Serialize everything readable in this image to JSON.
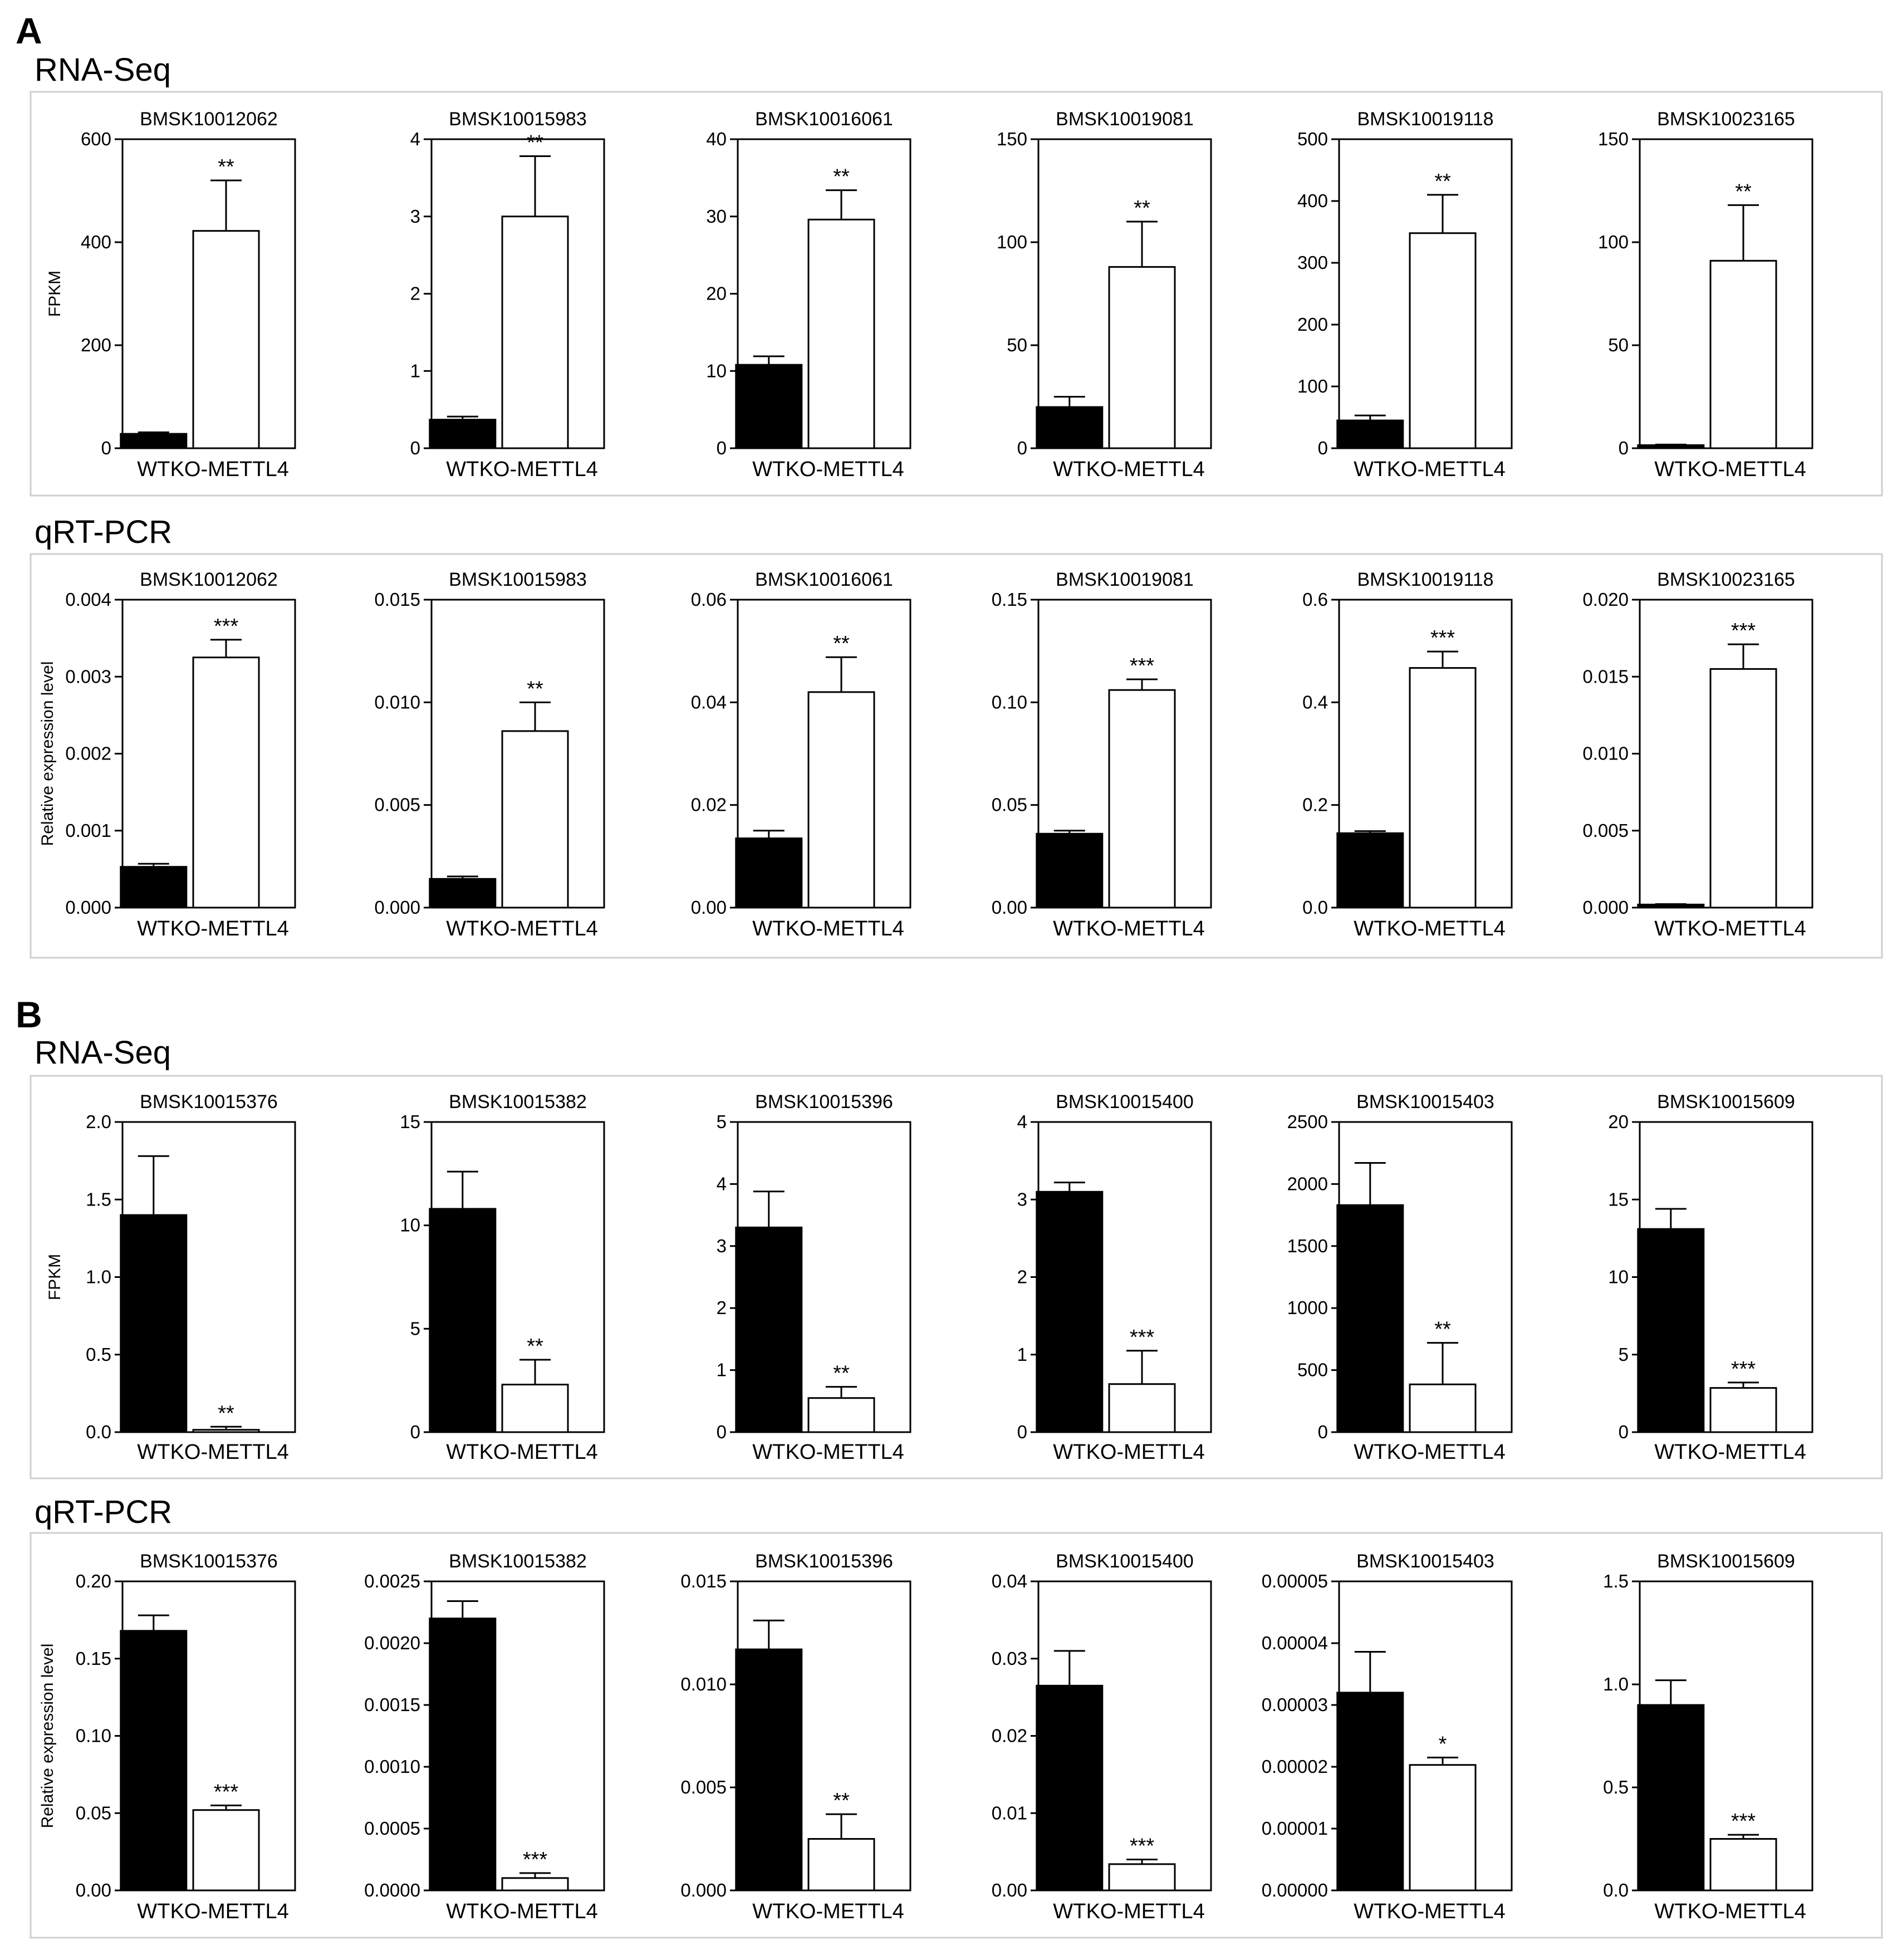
{
  "panels": [
    {
      "letter": "A",
      "rows": [
        {
          "title": "RNA-Seq",
          "ylabel": "FPKM",
          "charts": [
            {
              "title": "BMSK10012062",
              "ylim": [
                0,
                600
              ],
              "ticks": [
                "0",
                "200",
                "400",
                "600"
              ],
              "categories": [
                "WT",
                "KO-METTL4"
              ],
              "values": [
                28,
                422
              ],
              "errors": [
                3,
                98
              ],
              "sig": [
                "",
                "**"
              ]
            },
            {
              "title": "BMSK10015983",
              "ylim": [
                0,
                4
              ],
              "ticks": [
                "0",
                "1",
                "2",
                "3",
                "4"
              ],
              "categories": [
                "WT",
                "KO-METTL4"
              ],
              "values": [
                0.37,
                3.0
              ],
              "errors": [
                0.04,
                0.78
              ],
              "sig": [
                "",
                "**"
              ]
            },
            {
              "title": "BMSK10016061",
              "ylim": [
                0,
                40
              ],
              "ticks": [
                "0",
                "10",
                "20",
                "30",
                "40"
              ],
              "categories": [
                "WT",
                "KO-METTL4"
              ],
              "values": [
                10.8,
                29.6
              ],
              "errors": [
                1.1,
                3.8
              ],
              "sig": [
                "",
                "**"
              ]
            },
            {
              "title": "BMSK10019081",
              "ylim": [
                0,
                150
              ],
              "ticks": [
                "0",
                "50",
                "100",
                "150"
              ],
              "categories": [
                "WT",
                "KO-METTL4"
              ],
              "values": [
                20,
                88
              ],
              "errors": [
                5,
                22
              ],
              "sig": [
                "",
                "**"
              ]
            },
            {
              "title": "BMSK10019118",
              "ylim": [
                0,
                500
              ],
              "ticks": [
                "0",
                "100",
                "200",
                "300",
                "400",
                "500"
              ],
              "categories": [
                "WT",
                "KO-METTL4"
              ],
              "values": [
                45,
                348
              ],
              "errors": [
                8,
                62
              ],
              "sig": [
                "",
                "**"
              ]
            },
            {
              "title": "BMSK10023165",
              "ylim": [
                0,
                150
              ],
              "ticks": [
                "0",
                "50",
                "100",
                "150"
              ],
              "categories": [
                "WT",
                "KO-METTL4"
              ],
              "values": [
                1.5,
                91
              ],
              "errors": [
                0.3,
                27
              ],
              "sig": [
                "",
                "**"
              ]
            }
          ]
        },
        {
          "title": "qRT-PCR",
          "ylabel": "Relative expression level",
          "charts": [
            {
              "title": "BMSK10012062",
              "ylim": [
                0,
                0.004
              ],
              "ticks": [
                "0.000",
                "0.001",
                "0.002",
                "0.003",
                "0.004"
              ],
              "categories": [
                "WT",
                "KO-METTL4"
              ],
              "values": [
                0.00053,
                0.00325
              ],
              "errors": [
                4e-05,
                0.00023
              ],
              "sig": [
                "",
                "***"
              ]
            },
            {
              "title": "BMSK10015983",
              "ylim": [
                0,
                0.015
              ],
              "ticks": [
                "0.000",
                "0.005",
                "0.010",
                "0.015"
              ],
              "categories": [
                "WT",
                "KO-METTL4"
              ],
              "values": [
                0.0014,
                0.0086
              ],
              "errors": [
                0.00012,
                0.0014
              ],
              "sig": [
                "",
                "**"
              ]
            },
            {
              "title": "BMSK10016061",
              "ylim": [
                0,
                0.06
              ],
              "ticks": [
                "0.00",
                "0.02",
                "0.04",
                "0.06"
              ],
              "categories": [
                "WT",
                "KO-METTL4"
              ],
              "values": [
                0.0135,
                0.042
              ],
              "errors": [
                0.0015,
                0.0068
              ],
              "sig": [
                "",
                "**"
              ]
            },
            {
              "title": "BMSK10019081",
              "ylim": [
                0,
                0.15
              ],
              "ticks": [
                "0.00",
                "0.05",
                "0.10",
                "0.15"
              ],
              "categories": [
                "WT",
                "KO-METTL4"
              ],
              "values": [
                0.036,
                0.106
              ],
              "errors": [
                0.0015,
                0.0052
              ],
              "sig": [
                "",
                "***"
              ]
            },
            {
              "title": "BMSK10019118",
              "ylim": [
                0,
                0.6
              ],
              "ticks": [
                "0.0",
                "0.2",
                "0.4",
                "0.6"
              ],
              "categories": [
                "WT",
                "KO-METTL4"
              ],
              "values": [
                0.145,
                0.467
              ],
              "errors": [
                0.004,
                0.032
              ],
              "sig": [
                "",
                "***"
              ]
            },
            {
              "title": "BMSK10023165",
              "ylim": [
                0,
                0.02
              ],
              "ticks": [
                "0.000",
                "0.005",
                "0.010",
                "0.015",
                "0.020"
              ],
              "categories": [
                "WT",
                "KO-METTL4"
              ],
              "values": [
                0.0002,
                0.0155
              ],
              "errors": [
                3e-05,
                0.0016
              ],
              "sig": [
                "",
                "***"
              ]
            }
          ]
        }
      ]
    },
    {
      "letter": "B",
      "rows": [
        {
          "title": "RNA-Seq",
          "ylabel": "FPKM",
          "charts": [
            {
              "title": "BMSK10015376",
              "ylim": [
                0,
                2.0
              ],
              "ticks": [
                "0.0",
                "0.5",
                "1.0",
                "1.5",
                "2.0"
              ],
              "categories": [
                "WT",
                "KO-METTL4"
              ],
              "values": [
                1.4,
                0.015
              ],
              "errors": [
                0.38,
                0.02
              ],
              "sig": [
                "",
                "**"
              ]
            },
            {
              "title": "BMSK10015382",
              "ylim": [
                0,
                15
              ],
              "ticks": [
                "0",
                "5",
                "10",
                "15"
              ],
              "categories": [
                "WT",
                "KO-METTL4"
              ],
              "values": [
                10.8,
                2.3
              ],
              "errors": [
                1.8,
                1.2
              ],
              "sig": [
                "",
                "**"
              ]
            },
            {
              "title": "BMSK10015396",
              "ylim": [
                0,
                5
              ],
              "ticks": [
                "0",
                "1",
                "2",
                "3",
                "4",
                "5"
              ],
              "categories": [
                "WT",
                "KO-METTL4"
              ],
              "values": [
                3.3,
                0.55
              ],
              "errors": [
                0.58,
                0.18
              ],
              "sig": [
                "",
                "**"
              ]
            },
            {
              "title": "BMSK10015400",
              "ylim": [
                0,
                4
              ],
              "ticks": [
                "0",
                "1",
                "2",
                "3",
                "4"
              ],
              "categories": [
                "WT",
                "KO-METTL4"
              ],
              "values": [
                3.1,
                0.62
              ],
              "errors": [
                0.12,
                0.43
              ],
              "sig": [
                "",
                "***"
              ]
            },
            {
              "title": "BMSK10015403",
              "ylim": [
                0,
                2500
              ],
              "ticks": [
                "0",
                "500",
                "1000",
                "1500",
                "2000",
                "2500"
              ],
              "categories": [
                "WT",
                "KO-METTL4"
              ],
              "values": [
                1830,
                385
              ],
              "errors": [
                340,
                335
              ],
              "sig": [
                "",
                "**"
              ]
            },
            {
              "title": "BMSK10015609",
              "ylim": [
                0,
                20
              ],
              "ticks": [
                "0",
                "5",
                "10",
                "15",
                "20"
              ],
              "categories": [
                "WT",
                "KO-METTL4"
              ],
              "values": [
                13.1,
                2.85
              ],
              "errors": [
                1.3,
                0.35
              ],
              "sig": [
                "",
                "***"
              ]
            }
          ]
        },
        {
          "title": "qRT-PCR",
          "ylabel": "Relative expression level",
          "charts": [
            {
              "title": "BMSK10015376",
              "ylim": [
                0,
                0.2
              ],
              "ticks": [
                "0.00",
                "0.05",
                "0.10",
                "0.15",
                "0.20"
              ],
              "categories": [
                "WT",
                "KO-METTL4"
              ],
              "values": [
                0.168,
                0.052
              ],
              "errors": [
                0.01,
                0.003
              ],
              "sig": [
                "",
                "***"
              ]
            },
            {
              "title": "BMSK10015382",
              "ylim": [
                0,
                0.0025
              ],
              "ticks": [
                "0.0000",
                "0.0005",
                "0.0010",
                "0.0015",
                "0.0020",
                "0.0025"
              ],
              "categories": [
                "WT",
                "KO-METTL4"
              ],
              "values": [
                0.0022,
                0.0001
              ],
              "errors": [
                0.00014,
                4e-05
              ],
              "sig": [
                "",
                "***"
              ]
            },
            {
              "title": "BMSK10015396",
              "ylim": [
                0,
                0.015
              ],
              "ticks": [
                "0.000",
                "0.005",
                "0.010",
                "0.015"
              ],
              "categories": [
                "WT",
                "KO-METTL4"
              ],
              "values": [
                0.0117,
                0.0025
              ],
              "errors": [
                0.0014,
                0.0012
              ],
              "sig": [
                "",
                "**"
              ]
            },
            {
              "title": "BMSK10015400",
              "ylim": [
                0,
                0.04
              ],
              "ticks": [
                "0.00",
                "0.01",
                "0.02",
                "0.03",
                "0.04"
              ],
              "categories": [
                "WT",
                "KO-METTL4"
              ],
              "values": [
                0.0265,
                0.0034
              ],
              "errors": [
                0.0045,
                0.0006
              ],
              "sig": [
                "",
                "***"
              ]
            },
            {
              "title": "BMSK10015403",
              "ylim": [
                0,
                5e-05
              ],
              "ticks": [
                "0.00000",
                "0.00001",
                "0.00002",
                "0.00003",
                "0.00004",
                "0.00005"
              ],
              "categories": [
                "WT",
                "KO-METTL4"
              ],
              "values": [
                3.2e-05,
                2.03e-05
              ],
              "errors": [
                6.6e-06,
                1.2e-06
              ],
              "sig": [
                "",
                "*"
              ]
            },
            {
              "title": "BMSK10015609",
              "ylim": [
                0,
                1.5
              ],
              "ticks": [
                "0.0",
                "0.5",
                "1.0",
                "1.5"
              ],
              "categories": [
                "WT",
                "KO-METTL4"
              ],
              "values": [
                0.9,
                0.25
              ],
              "errors": [
                0.12,
                0.02
              ],
              "sig": [
                "",
                "***"
              ]
            }
          ]
        }
      ]
    }
  ],
  "chart_data": {
    "type": "bar",
    "description_series": [
      "WT",
      "KO-METTL4"
    ],
    "groups": [
      {
        "panel": "A",
        "assay": "RNA-Seq",
        "ylabel": "FPKM",
        "genes": [
          "BMSK10012062",
          "BMSK10015983",
          "BMSK10016061",
          "BMSK10019081",
          "BMSK10019118",
          "BMSK10023165"
        ],
        "series": [
          {
            "name": "WT",
            "values": [
              28,
              0.37,
              10.8,
              20,
              45,
              1.5
            ]
          },
          {
            "name": "KO-METTL4",
            "values": [
              422,
              3.0,
              29.6,
              88,
              348,
              91
            ]
          }
        ]
      },
      {
        "panel": "A",
        "assay": "qRT-PCR",
        "ylabel": "Relative expression level",
        "genes": [
          "BMSK10012062",
          "BMSK10015983",
          "BMSK10016061",
          "BMSK10019081",
          "BMSK10019118",
          "BMSK10023165"
        ],
        "series": [
          {
            "name": "WT",
            "values": [
              0.00053,
              0.0014,
              0.0135,
              0.036,
              0.145,
              0.0002
            ]
          },
          {
            "name": "KO-METTL4",
            "values": [
              0.00325,
              0.0086,
              0.042,
              0.106,
              0.467,
              0.0155
            ]
          }
        ]
      },
      {
        "panel": "B",
        "assay": "RNA-Seq",
        "ylabel": "FPKM",
        "genes": [
          "BMSK10015376",
          "BMSK10015382",
          "BMSK10015396",
          "BMSK10015400",
          "BMSK10015403",
          "BMSK10015609"
        ],
        "series": [
          {
            "name": "WT",
            "values": [
              1.4,
              10.8,
              3.3,
              3.1,
              1830,
              13.1
            ]
          },
          {
            "name": "KO-METTL4",
            "values": [
              0.015,
              2.3,
              0.55,
              0.62,
              385,
              2.85
            ]
          }
        ]
      },
      {
        "panel": "B",
        "assay": "qRT-PCR",
        "ylabel": "Relative expression level",
        "genes": [
          "BMSK10015376",
          "BMSK10015382",
          "BMSK10015396",
          "BMSK10015400",
          "BMSK10015403",
          "BMSK10015609"
        ],
        "series": [
          {
            "name": "WT",
            "values": [
              0.168,
              0.0022,
              0.0117,
              0.0265,
              3.2e-05,
              0.9
            ]
          },
          {
            "name": "KO-METTL4",
            "values": [
              0.052,
              0.0001,
              0.0025,
              0.0034,
              2.03e-05,
              0.25
            ]
          }
        ]
      }
    ]
  }
}
